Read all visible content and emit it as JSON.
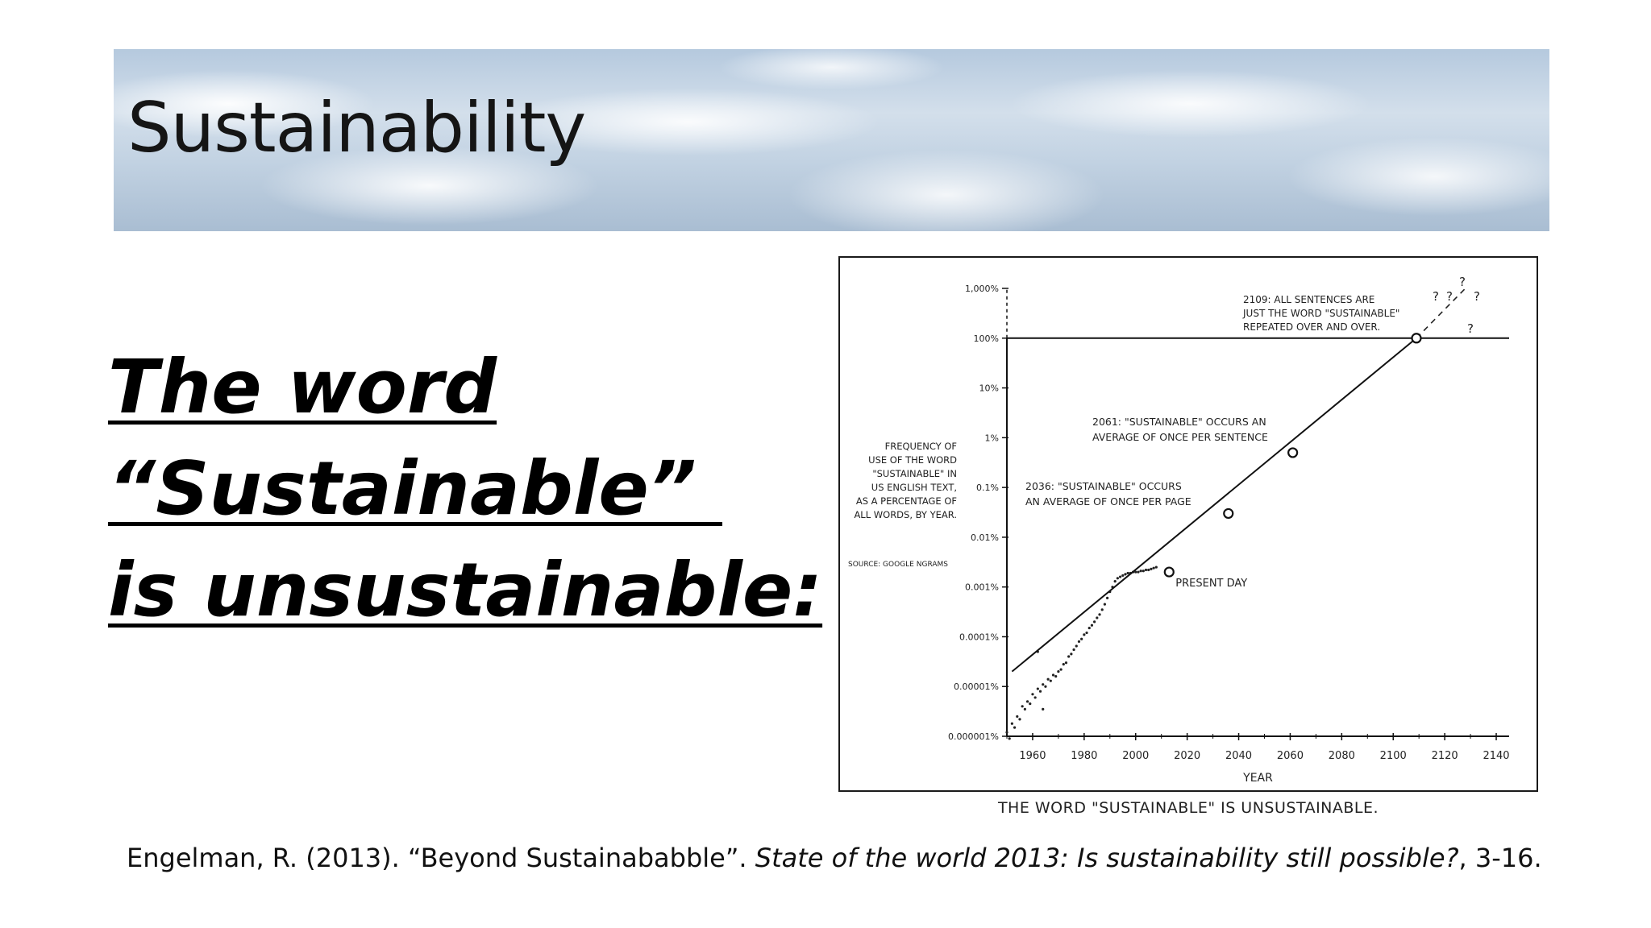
{
  "slide": {
    "title": "Sustainability",
    "headline": "The word\n“Sustainable” \nis unsustainable:",
    "citation_plain": "Engelman, R. (2013). “Beyond Sustainababble”. ",
    "citation_italic": "State of the world 2013: Is sustainability still possible?",
    "citation_end": ", 3-16."
  },
  "chart_data": {
    "type": "scatter",
    "title": "",
    "caption": "THE WORD \"SUSTAINABLE\" IS UNSUSTAINABLE.",
    "xlabel": "YEAR",
    "ylabel": "FREQUENCY OF USE OF THE WORD \"SUSTAINABLE\" IN US ENGLISH TEXT, AS A PERCENTAGE OF ALL WORDS, BY YEAR.",
    "source": "SOURCE: GOOGLE NGRAMS",
    "y_scale": "log",
    "xlim": [
      1950,
      2145
    ],
    "ylim": [
      1e-06,
      1000
    ],
    "x_ticks": [
      "1960",
      "1980",
      "2000",
      "2020",
      "2040",
      "2060",
      "2080",
      "2100",
      "2120",
      "2140"
    ],
    "y_ticks": [
      "1,000%",
      "100%",
      "10%",
      "1%",
      "0.1%",
      "0.01%",
      "0.001%",
      "0.0001%",
      "0.00001%",
      "0.000001%"
    ],
    "reference_line": {
      "y": 100
    },
    "trend_line": {
      "x": [
        1952,
        2109
      ],
      "y": [
        2e-05,
        100
      ]
    },
    "projection": {
      "x": [
        2109,
        2128
      ],
      "y": [
        100,
        1000
      ]
    },
    "markers": [
      {
        "x": 2013,
        "y": 0.002,
        "label": "PRESENT DAY"
      },
      {
        "x": 2036,
        "y": 0.03,
        "label": "2036: \"SUSTAINABLE\" OCCURS AN AVERAGE OF ONCE PER PAGE"
      },
      {
        "x": 2061,
        "y": 0.5,
        "label": "2061: \"SUSTAINABLE\" OCCURS AN AVERAGE OF ONCE PER SENTENCE"
      },
      {
        "x": 2109,
        "y": 100,
        "label": "2109: ALL SENTENCES ARE JUST THE WORD \"SUSTAINABLE\" REPEATED OVER AND OVER."
      }
    ],
    "question_marks": "? ? ? ? ?",
    "series": [
      {
        "points": [
          [
            1950,
            1.2e-06
          ],
          [
            1951,
            9e-07
          ],
          [
            1952,
            1.8e-06
          ],
          [
            1953,
            1.5e-06
          ],
          [
            1954,
            2.5e-06
          ],
          [
            1955,
            2.2e-06
          ],
          [
            1956,
            4e-06
          ],
          [
            1957,
            3.5e-06
          ],
          [
            1958,
            5e-06
          ],
          [
            1959,
            4.5e-06
          ],
          [
            1960,
            7e-06
          ],
          [
            1961,
            6e-06
          ],
          [
            1962,
            9e-06
          ],
          [
            1963,
            8e-06
          ],
          [
            1964,
            1.1e-05
          ],
          [
            1965,
            1e-05
          ],
          [
            1966,
            1.4e-05
          ],
          [
            1967,
            1.3e-05
          ],
          [
            1968,
            1.7e-05
          ],
          [
            1969,
            1.6e-05
          ],
          [
            1970,
            2e-05
          ],
          [
            1971,
            2.2e-05
          ],
          [
            1972,
            2.8e-05
          ],
          [
            1973,
            3e-05
          ],
          [
            1974,
            4e-05
          ],
          [
            1975,
            4.5e-05
          ],
          [
            1976,
            5.5e-05
          ],
          [
            1977,
            6.5e-05
          ],
          [
            1978,
            8e-05
          ],
          [
            1979,
            9e-05
          ],
          [
            1980,
            0.00011
          ],
          [
            1981,
            0.00012
          ],
          [
            1982,
            0.00015
          ],
          [
            1983,
            0.00017
          ],
          [
            1984,
            0.0002
          ],
          [
            1985,
            0.00024
          ],
          [
            1986,
            0.00028
          ],
          [
            1987,
            0.00035
          ],
          [
            1988,
            0.00045
          ],
          [
            1989,
            0.0006
          ],
          [
            1990,
            0.0008
          ],
          [
            1991,
            0.001
          ],
          [
            1992,
            0.0013
          ],
          [
            1993,
            0.0015
          ],
          [
            1994,
            0.0016
          ],
          [
            1995,
            0.0017
          ],
          [
            1996,
            0.0018
          ],
          [
            1997,
            0.0019
          ],
          [
            1998,
            0.0019
          ],
          [
            1999,
            0.002
          ],
          [
            2000,
            0.002
          ],
          [
            2001,
            0.002
          ],
          [
            2002,
            0.0021
          ],
          [
            2003,
            0.0021
          ],
          [
            2004,
            0.0022
          ],
          [
            2005,
            0.0022
          ],
          [
            2006,
            0.0023
          ],
          [
            2007,
            0.0024
          ],
          [
            2008,
            0.0025
          ],
          [
            1962,
            5e-05
          ],
          [
            1964,
            3.5e-06
          ]
        ]
      }
    ],
    "grid": false,
    "legend": "none"
  }
}
